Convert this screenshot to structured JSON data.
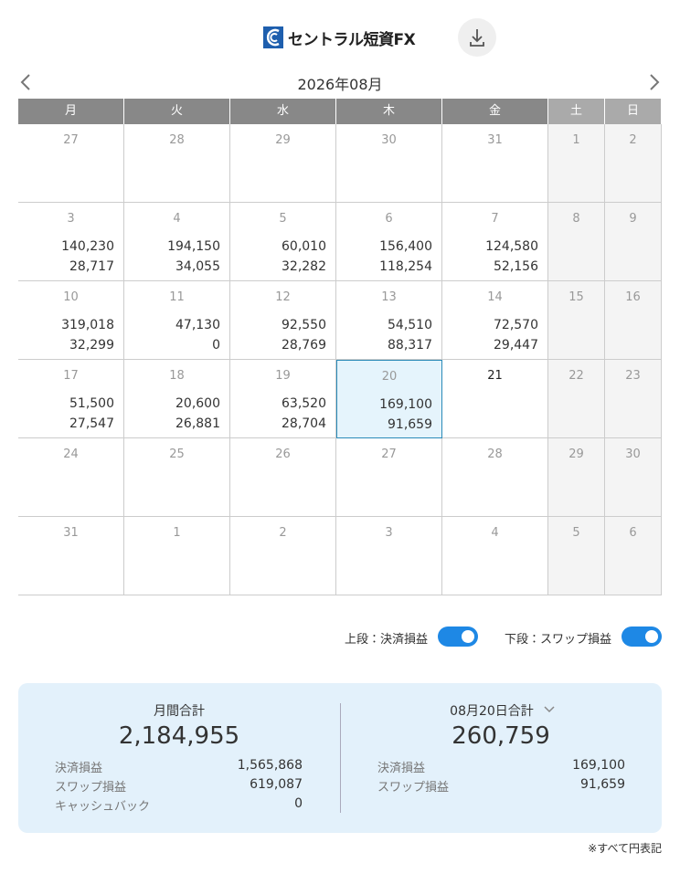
{
  "header": {
    "logo": "セントラル短資FX"
  },
  "calendar": {
    "month": "2026年08月",
    "weekdays": [
      "月",
      "火",
      "水",
      "木",
      "金",
      "土",
      "日"
    ],
    "weeks": [
      [
        {
          "day": "27"
        },
        {
          "day": "28"
        },
        {
          "day": "29"
        },
        {
          "day": "30"
        },
        {
          "day": "31"
        },
        {
          "day": "1"
        },
        {
          "day": "2"
        }
      ],
      [
        {
          "day": "3",
          "upper": "140,230",
          "lower": "28,717"
        },
        {
          "day": "4",
          "upper": "194,150",
          "lower": "34,055"
        },
        {
          "day": "5",
          "upper": "60,010",
          "lower": "32,282"
        },
        {
          "day": "6",
          "upper": "156,400",
          "lower": "118,254"
        },
        {
          "day": "7",
          "upper": "124,580",
          "lower": "52,156"
        },
        {
          "day": "8"
        },
        {
          "day": "9"
        }
      ],
      [
        {
          "day": "10",
          "upper": "319,018",
          "lower": "32,299"
        },
        {
          "day": "11",
          "upper": "47,130",
          "lower": "0"
        },
        {
          "day": "12",
          "upper": "92,550",
          "lower": "28,769"
        },
        {
          "day": "13",
          "upper": "54,510",
          "lower": "88,317"
        },
        {
          "day": "14",
          "upper": "72,570",
          "lower": "29,447"
        },
        {
          "day": "15"
        },
        {
          "day": "16"
        }
      ],
      [
        {
          "day": "17",
          "upper": "51,500",
          "lower": "27,547"
        },
        {
          "day": "18",
          "upper": "20,600",
          "lower": "26,881"
        },
        {
          "day": "19",
          "upper": "63,520",
          "lower": "28,704"
        },
        {
          "day": "20",
          "upper": "169,100",
          "lower": "91,659",
          "selected": true
        },
        {
          "day": "21",
          "today": true
        },
        {
          "day": "22"
        },
        {
          "day": "23"
        }
      ],
      [
        {
          "day": "24"
        },
        {
          "day": "25"
        },
        {
          "day": "26"
        },
        {
          "day": "27"
        },
        {
          "day": "28"
        },
        {
          "day": "29"
        },
        {
          "day": "30"
        }
      ],
      [
        {
          "day": "31"
        },
        {
          "day": "1"
        },
        {
          "day": "2"
        },
        {
          "day": "3"
        },
        {
          "day": "4"
        },
        {
          "day": "5"
        },
        {
          "day": "6"
        }
      ]
    ]
  },
  "toggles": [
    {
      "label": "上段：決済損益",
      "on": true
    },
    {
      "label": "下段：スワップ損益",
      "on": true
    }
  ],
  "summary": {
    "month": {
      "title": "月間合計",
      "total": "2,184,955",
      "rows": [
        [
          "決済損益",
          "1,565,868"
        ],
        [
          "スワップ損益",
          "619,087"
        ],
        [
          "キャッシュバック",
          "0"
        ]
      ]
    },
    "day": {
      "title": "08月20日合計",
      "total": "260,759",
      "rows": [
        [
          "決済損益",
          "169,100"
        ],
        [
          "スワップ損益",
          "91,659"
        ]
      ]
    }
  },
  "footnote": "※すべて円表記"
}
